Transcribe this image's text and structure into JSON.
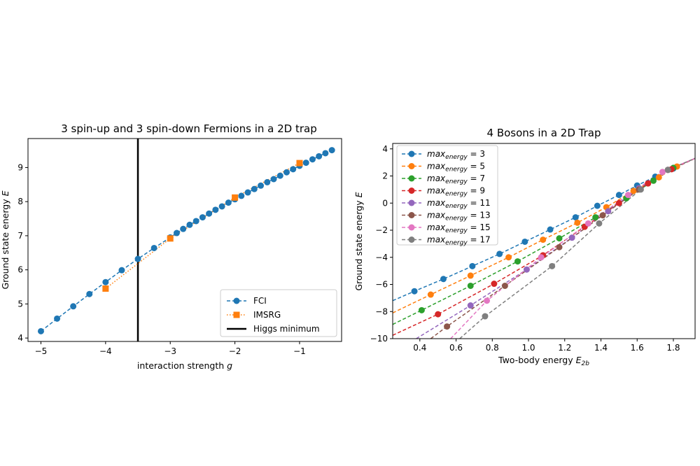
{
  "chart_data": [
    {
      "type": "line",
      "title": "3 spin-up and 3 spin-down Fermions in a 2D trap",
      "xlabel": "interaction strength",
      "xlabel_var": "g",
      "ylabel": "Ground state energy",
      "ylabel_var": "E",
      "xlim": [
        -5.2,
        -0.35
      ],
      "ylim": [
        3.9,
        9.85
      ],
      "xticks": [
        -5,
        -4,
        -3,
        -2,
        -1
      ],
      "xtick_labels": [
        "−5",
        "−4",
        "−3",
        "−2",
        "−1"
      ],
      "yticks": [
        4,
        5,
        6,
        7,
        8,
        9
      ],
      "yticks_labels": [
        "4",
        "5",
        "6",
        "7",
        "8",
        "9"
      ],
      "grid": false,
      "legend_position": "bottom-right",
      "series": [
        {
          "name": "FCI",
          "color": "#1f77b4",
          "marker": "circle",
          "linestyle": "dashed",
          "x": [
            -5.0,
            -4.75,
            -4.5,
            -4.25,
            -4.0,
            -3.75,
            -3.5,
            -3.25,
            -3.0,
            -2.9,
            -2.8,
            -2.7,
            -2.6,
            -2.5,
            -2.4,
            -2.3,
            -2.2,
            -2.1,
            -2.0,
            -1.9,
            -1.8,
            -1.7,
            -1.6,
            -1.5,
            -1.4,
            -1.3,
            -1.2,
            -1.1,
            -1.0,
            -0.9,
            -0.8,
            -0.7,
            -0.6,
            -0.5
          ],
          "y": [
            4.2,
            4.57,
            4.93,
            5.29,
            5.64,
            5.99,
            6.32,
            6.64,
            6.95,
            7.08,
            7.2,
            7.32,
            7.43,
            7.54,
            7.65,
            7.76,
            7.86,
            7.97,
            8.07,
            8.17,
            8.27,
            8.37,
            8.47,
            8.57,
            8.66,
            8.76,
            8.86,
            8.95,
            9.05,
            9.14,
            9.24,
            9.33,
            9.42,
            9.51
          ]
        },
        {
          "name": "IMSRG",
          "color": "#ff7f0e",
          "marker": "square",
          "linestyle": "dotted",
          "x": [
            -4.0,
            -3.0,
            -2.0,
            -1.0
          ],
          "y": [
            5.45,
            6.92,
            8.12,
            9.13
          ]
        }
      ],
      "vlines": [
        {
          "name": "Higgs minimum",
          "x": -3.5,
          "color": "#000000"
        }
      ]
    },
    {
      "type": "line",
      "title": "4 Bosons in a 2D Trap",
      "xlabel": "Two-body energy",
      "xlabel_var": "E",
      "xlabel_sub": "2b",
      "ylabel": "Ground state energy",
      "ylabel_var": "E",
      "xlim": [
        0.25,
        1.92
      ],
      "ylim": [
        -10,
        4.4
      ],
      "xticks": [
        0.4,
        0.6,
        0.8,
        1.0,
        1.2,
        1.4,
        1.6,
        1.8
      ],
      "xtick_labels": [
        "0.4",
        "0.6",
        "0.8",
        "1.0",
        "1.2",
        "1.4",
        "1.6",
        "1.8"
      ],
      "yticks": [
        -10,
        -8,
        -6,
        -4,
        -2,
        0,
        2,
        4
      ],
      "ytick_labels": [
        "−10",
        "−8",
        "−6",
        "−4",
        "−2",
        "0",
        "2",
        "4"
      ],
      "grid": false,
      "legend_position": "top-left",
      "legend_var": "max",
      "legend_sub": "energy",
      "series": [
        {
          "name": "3",
          "color": "#1f77b4",
          "x": [
            0.25,
            0.37,
            0.53,
            0.69,
            0.84,
            0.98,
            1.12,
            1.26,
            1.38,
            1.5,
            1.6,
            1.7,
            1.8,
            1.92
          ],
          "y": [
            -7.2,
            -6.5,
            -5.6,
            -4.65,
            -3.75,
            -2.85,
            -1.95,
            -1.05,
            -0.2,
            0.6,
            1.3,
            1.95,
            2.55,
            3.3
          ]
        },
        {
          "name": "5",
          "color": "#ff7f0e",
          "x": [
            0.25,
            0.46,
            0.68,
            0.89,
            1.08,
            1.27,
            1.43,
            1.58,
            1.72,
            1.82,
            1.92
          ],
          "y": [
            -8.1,
            -6.75,
            -5.35,
            -4.0,
            -2.7,
            -1.45,
            -0.3,
            0.9,
            1.9,
            2.7,
            3.3
          ]
        },
        {
          "name": "7",
          "color": "#2ca02c",
          "x": [
            0.25,
            0.41,
            0.68,
            0.94,
            1.17,
            1.37,
            1.54,
            1.69,
            1.8,
            1.92
          ],
          "y": [
            -8.95,
            -7.9,
            -6.1,
            -4.3,
            -2.6,
            -1.05,
            0.35,
            1.65,
            2.6,
            3.3
          ]
        },
        {
          "name": "9",
          "color": "#d62728",
          "x": [
            0.25,
            0.5,
            0.81,
            1.08,
            1.31,
            1.5,
            1.66,
            1.79,
            1.92
          ],
          "y": [
            -9.75,
            -8.2,
            -5.95,
            -3.85,
            -1.75,
            0.0,
            1.45,
            2.5,
            3.3
          ]
        },
        {
          "name": "11",
          "color": "#9467bd",
          "x": [
            0.38,
            0.68,
            0.99,
            1.24,
            1.44,
            1.61,
            1.77,
            1.92
          ],
          "y": [
            -10.0,
            -7.55,
            -4.9,
            -2.55,
            -0.6,
            1.1,
            2.45,
            3.3
          ]
        },
        {
          "name": "13",
          "color": "#8c564b",
          "x": [
            0.46,
            0.55,
            0.87,
            1.17,
            1.41,
            1.61,
            1.77,
            1.92
          ],
          "y": [
            -10.0,
            -9.1,
            -6.1,
            -3.25,
            -0.9,
            1.0,
            2.45,
            3.3
          ]
        },
        {
          "name": "15",
          "color": "#e377c2",
          "x": [
            0.57,
            0.77,
            1.07,
            1.33,
            1.55,
            1.74,
            1.92
          ],
          "y": [
            -10.0,
            -7.2,
            -4.0,
            -1.5,
            0.6,
            2.3,
            3.3
          ]
        },
        {
          "name": "17",
          "color": "#7f7f7f",
          "x": [
            0.62,
            0.76,
            1.13,
            1.39,
            1.62,
            1.77,
            1.92
          ],
          "y": [
            -10.0,
            -8.35,
            -4.65,
            -1.5,
            1.0,
            2.45,
            3.3
          ]
        }
      ]
    }
  ]
}
